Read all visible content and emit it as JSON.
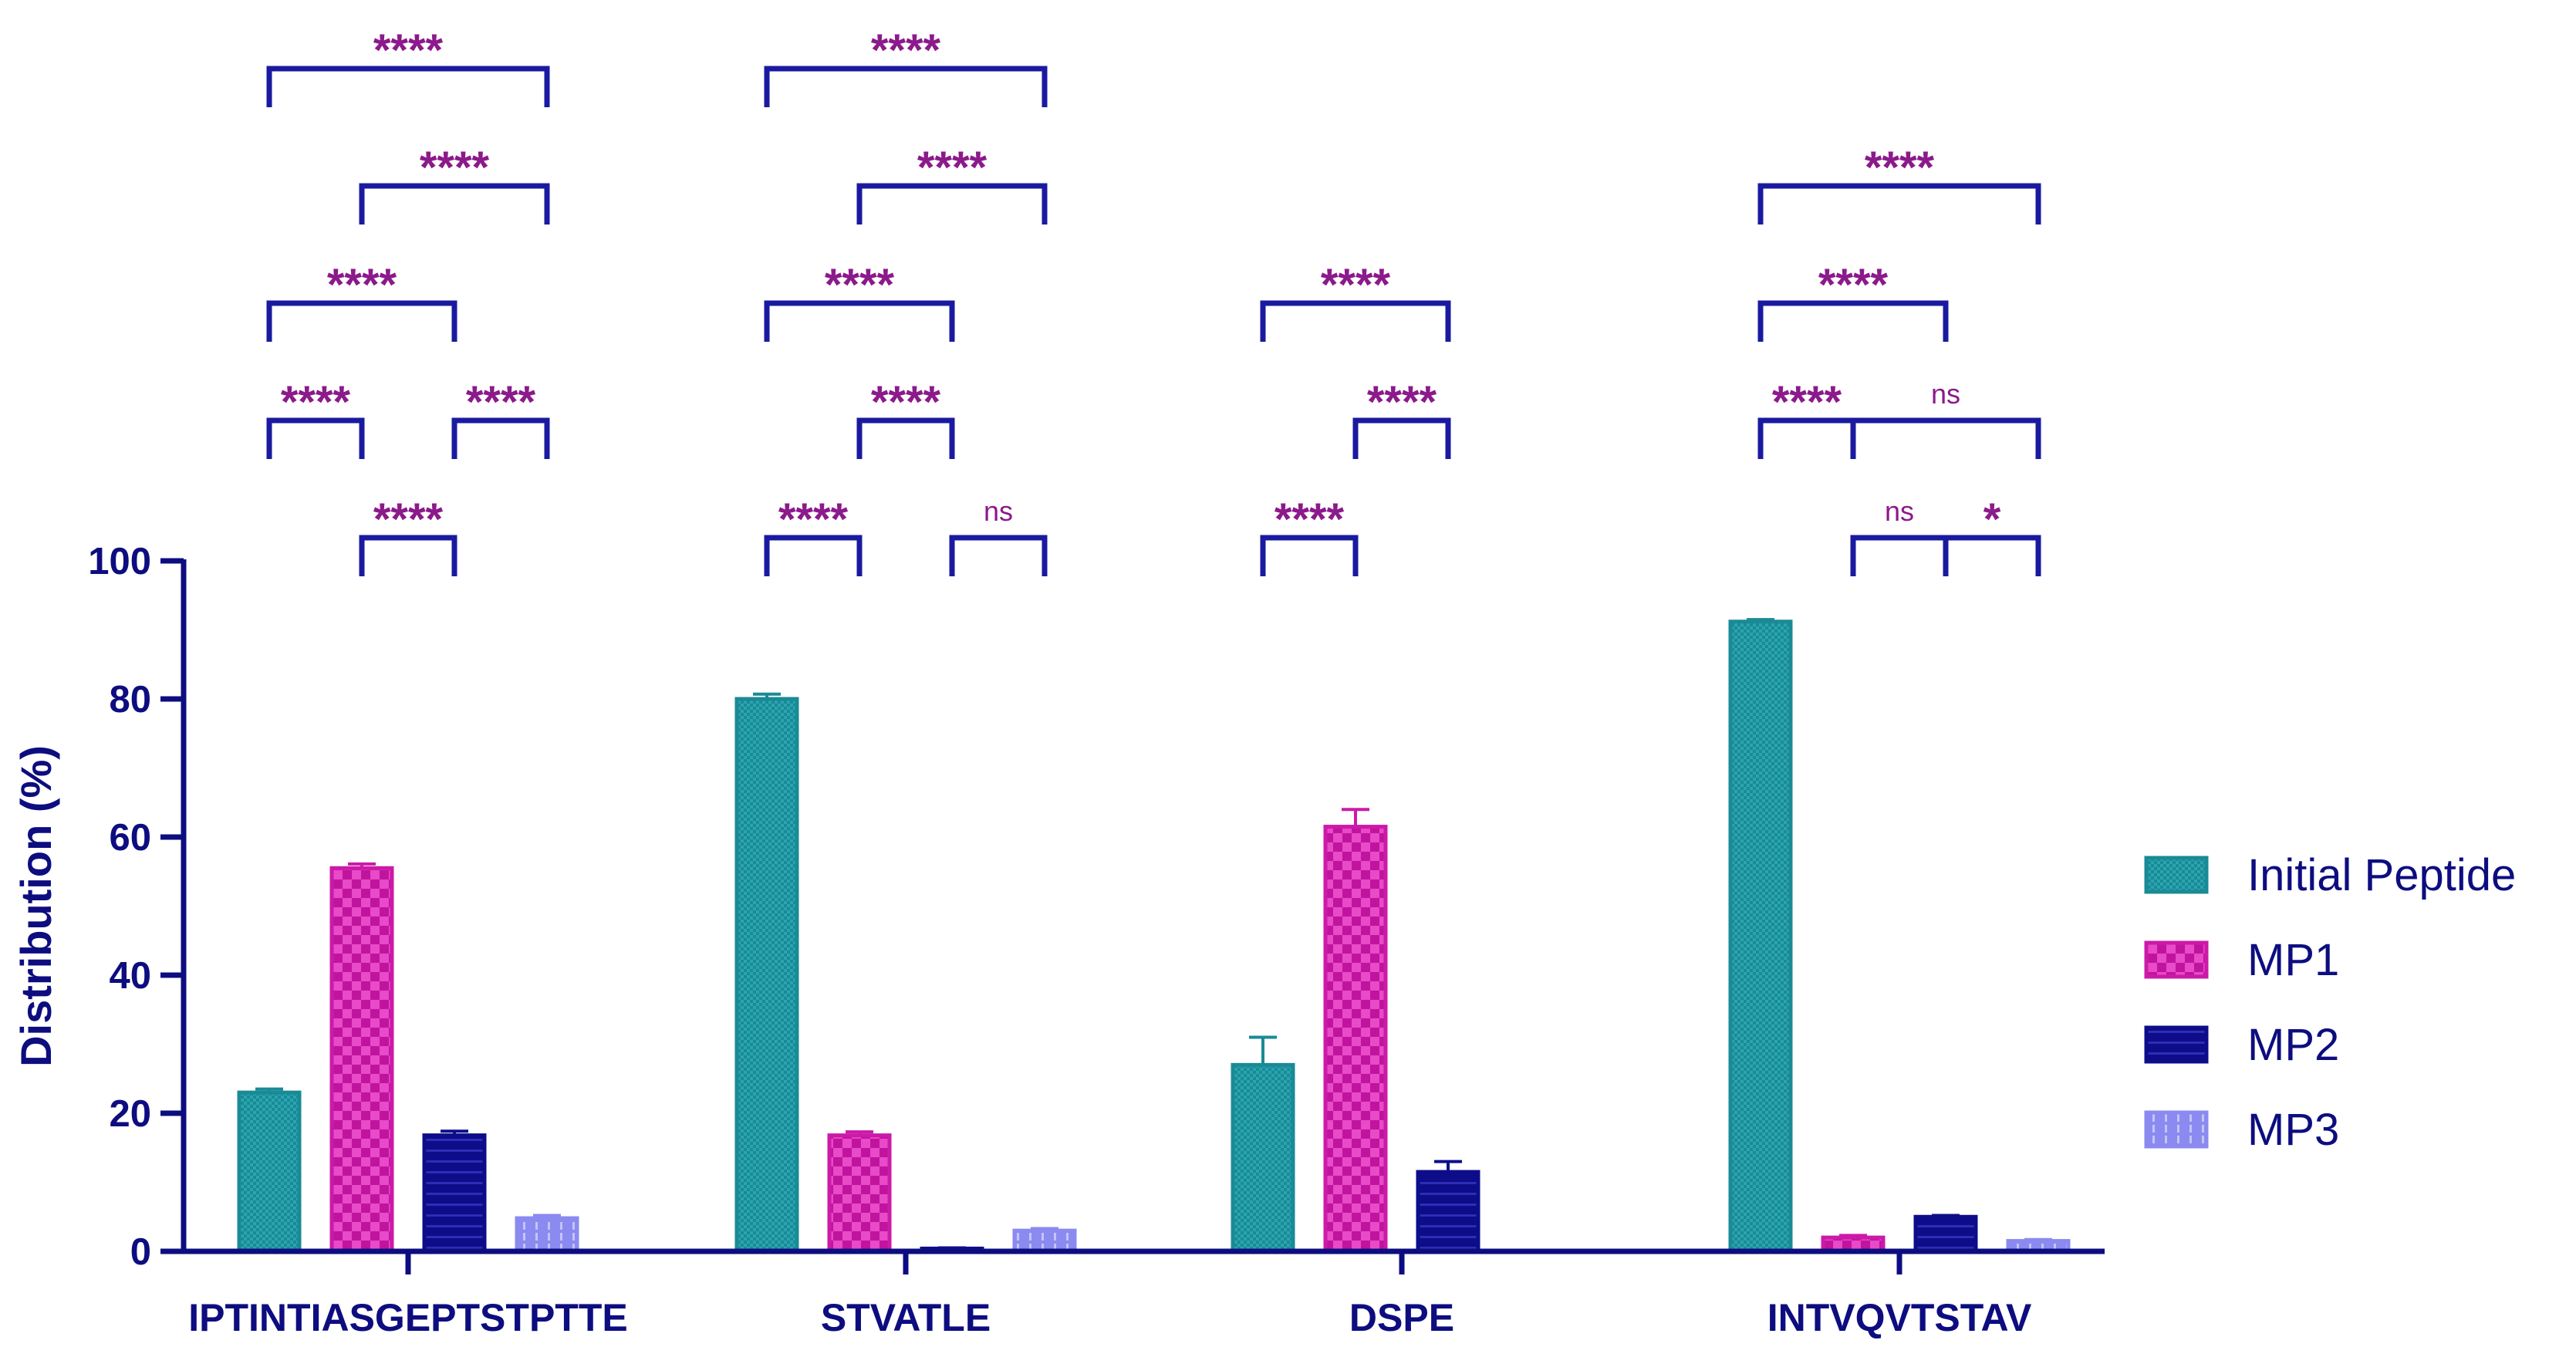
{
  "chart_data": {
    "type": "bar",
    "ylabel": "Distribution (%)",
    "xlabel": "",
    "ylim": [
      0,
      100
    ],
    "yticks": [
      "0",
      "20",
      "40",
      "60",
      "80",
      "100"
    ],
    "categories": [
      "IPTINTIASGEPTSTPTTE",
      "STVATLE",
      "DSPE",
      "INTVQVTSTAV"
    ],
    "series": [
      {
        "name": "Initial Peptide",
        "values": [
          23,
          80,
          27,
          91.2
        ],
        "errors": [
          0.5,
          0.7,
          4.0,
          0.3
        ],
        "color": "#1a8a96"
      },
      {
        "name": "MP1",
        "values": [
          55.5,
          16.8,
          61.5,
          2.0
        ],
        "errors": [
          0.6,
          0.5,
          2.5,
          0.3
        ],
        "color": "#cc1aa8"
      },
      {
        "name": "MP2",
        "values": [
          16.8,
          0.4,
          11.5,
          5.0
        ],
        "errors": [
          0.6,
          0.1,
          1.5,
          0.2
        ],
        "color": "#0d0d8a"
      },
      {
        "name": "MP3",
        "values": [
          4.8,
          3.0,
          0,
          1.5
        ],
        "errors": [
          0.4,
          0.3,
          0,
          0.2
        ],
        "color": "#8a8af0"
      }
    ],
    "legend": "right",
    "significance": [
      {
        "group": 0,
        "from": 0,
        "to": 3,
        "level": 6,
        "label": "****"
      },
      {
        "group": 0,
        "from": 1,
        "to": 3,
        "level": 5,
        "label": "****"
      },
      {
        "group": 0,
        "from": 0,
        "to": 2,
        "level": 4,
        "label": "****"
      },
      {
        "group": 0,
        "from": 0,
        "to": 1,
        "level": 3,
        "label": "****"
      },
      {
        "group": 0,
        "from": 2,
        "to": 3,
        "level": 3,
        "label": "****"
      },
      {
        "group": 0,
        "from": 1,
        "to": 2,
        "level": 2,
        "label": "****"
      },
      {
        "group": 1,
        "from": 0,
        "to": 3,
        "level": 6,
        "label": "****"
      },
      {
        "group": 1,
        "from": 1,
        "to": 3,
        "level": 5,
        "label": "****"
      },
      {
        "group": 1,
        "from": 0,
        "to": 2,
        "level": 4,
        "label": "****"
      },
      {
        "group": 1,
        "from": 1,
        "to": 2,
        "level": 3,
        "label": "****"
      },
      {
        "group": 1,
        "from": 0,
        "to": 1,
        "level": 2,
        "label": "****"
      },
      {
        "group": 1,
        "from": 2,
        "to": 3,
        "level": 2,
        "label": "ns"
      },
      {
        "group": 2,
        "from": 0,
        "to": 2,
        "level": 4,
        "label": "****"
      },
      {
        "group": 2,
        "from": 1,
        "to": 2,
        "level": 3,
        "label": "****"
      },
      {
        "group": 2,
        "from": 0,
        "to": 1,
        "level": 2,
        "label": "****"
      },
      {
        "group": 3,
        "from": 0,
        "to": 3,
        "level": 5,
        "label": "****"
      },
      {
        "group": 3,
        "from": 0,
        "to": 2,
        "level": 4,
        "label": "****"
      },
      {
        "group": 3,
        "from": 0,
        "to": 1,
        "level": 3,
        "label": "****"
      },
      {
        "group": 3,
        "from": 1,
        "to": 3,
        "level": 3,
        "label": "ns"
      },
      {
        "group": 3,
        "from": 1,
        "to": 2,
        "level": 2,
        "label": "ns"
      },
      {
        "group": 3,
        "from": 2,
        "to": 3,
        "level": 2,
        "label": "*"
      }
    ]
  }
}
